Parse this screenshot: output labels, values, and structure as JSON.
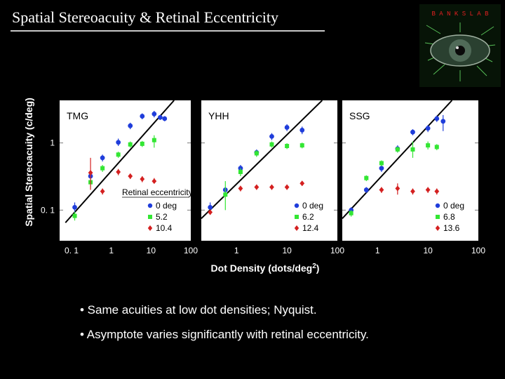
{
  "slide": {
    "title": "Spatial Stereoacuity & Retinal Eccentricity",
    "logo_text": "B A N K S  L A B",
    "bullets": [
      "• Same acuities at low dot densities; Nyquist.",
      "• Asymptote varies significantly with retinal eccentricity."
    ]
  },
  "chart_data": {
    "type": "scatter",
    "xlabel": "Dot Density (dots/deg",
    "xlabel_sup": "2",
    "xlabel_tail": ")",
    "ylabel": "Spatial Stereoacuity (c/deg)",
    "y_log": true,
    "x_log": true,
    "ylim": [
      0.035,
      4.3
    ],
    "y_ticks": [
      {
        "v": 1,
        "label": "1"
      },
      {
        "v": 0.1,
        "label": "0. 1"
      }
    ],
    "legend_title": "Retinal eccentricity",
    "colors": {
      "blue": "#1f3ddb",
      "green": "#33e633",
      "red": "#d42020",
      "line": "#000000"
    },
    "panels": [
      {
        "name": "TMG",
        "xlim": [
          0.05,
          100
        ],
        "x_ticks": [
          {
            "v": 0.1,
            "label": "0. 1"
          },
          {
            "v": 1,
            "label": "1"
          },
          {
            "v": 10,
            "label": "10"
          },
          {
            "v": 100,
            "label": "100"
          }
        ],
        "line": [
          [
            0.07,
            0.065
          ],
          [
            38,
            4.3
          ]
        ],
        "series": [
          {
            "name": "0 deg",
            "color": "blue",
            "marker": "circle",
            "points": [
              {
                "x": 0.12,
                "y": 0.11,
                "lo": 0.09,
                "hi": 0.13
              },
              {
                "x": 0.3,
                "y": 0.32,
                "lo": 0.28,
                "hi": 0.36
              },
              {
                "x": 0.6,
                "y": 0.6,
                "lo": 0.53,
                "hi": 0.67
              },
              {
                "x": 1.5,
                "y": 1.02,
                "lo": 0.9,
                "hi": 1.16
              },
              {
                "x": 3.0,
                "y": 1.8,
                "lo": 1.6,
                "hi": 2.0
              },
              {
                "x": 6.0,
                "y": 2.5,
                "lo": 2.25,
                "hi": 2.75
              },
              {
                "x": 12,
                "y": 2.7,
                "lo": 2.4,
                "hi": 3.0
              },
              {
                "x": 17,
                "y": 2.4,
                "lo": 2.2,
                "hi": 2.6
              },
              {
                "x": 22,
                "y": 2.3,
                "lo": 2.1,
                "hi": 2.5
              }
            ]
          },
          {
            "name": "5.2",
            "color": "green",
            "marker": "square",
            "points": [
              {
                "x": 0.12,
                "y": 0.082,
                "lo": 0.07,
                "hi": 0.095
              },
              {
                "x": 0.3,
                "y": 0.26,
                "lo": 0.22,
                "hi": 0.3
              },
              {
                "x": 0.6,
                "y": 0.42,
                "lo": 0.37,
                "hi": 0.47
              },
              {
                "x": 1.5,
                "y": 0.67,
                "lo": 0.6,
                "hi": 0.74
              },
              {
                "x": 3.0,
                "y": 0.95,
                "lo": 0.85,
                "hi": 1.05
              },
              {
                "x": 6.0,
                "y": 0.97,
                "lo": 0.87,
                "hi": 1.07
              },
              {
                "x": 12,
                "y": 1.1,
                "lo": 0.85,
                "hi": 1.3
              }
            ]
          },
          {
            "name": "10.4",
            "color": "red",
            "marker": "diamond",
            "points": [
              {
                "x": 0.3,
                "y": 0.36,
                "lo": 0.2,
                "hi": 0.6
              },
              {
                "x": 0.6,
                "y": 0.19,
                "lo": 0.17,
                "hi": 0.21
              },
              {
                "x": 1.5,
                "y": 0.37,
                "lo": 0.33,
                "hi": 0.41
              },
              {
                "x": 3.0,
                "y": 0.32,
                "lo": 0.29,
                "hi": 0.35
              },
              {
                "x": 6.0,
                "y": 0.29,
                "lo": 0.26,
                "hi": 0.32
              },
              {
                "x": 12,
                "y": 0.27,
                "lo": 0.25,
                "hi": 0.3
              }
            ]
          }
        ]
      },
      {
        "name": "YHH",
        "xlim": [
          0.2,
          100
        ],
        "x_ticks": [
          {
            "v": 1,
            "label": "1"
          },
          {
            "v": 10,
            "label": "10"
          },
          {
            "v": 100,
            "label": "100"
          }
        ],
        "line": [
          [
            0.2,
            0.075
          ],
          [
            50,
            4.3
          ]
        ],
        "series": [
          {
            "name": "0 deg",
            "color": "blue",
            "marker": "circle",
            "points": [
              {
                "x": 0.3,
                "y": 0.11,
                "lo": 0.09,
                "hi": 0.13
              },
              {
                "x": 0.6,
                "y": 0.2,
                "lo": 0.18,
                "hi": 0.22
              },
              {
                "x": 1.2,
                "y": 0.42,
                "lo": 0.37,
                "hi": 0.47
              },
              {
                "x": 2.5,
                "y": 0.72,
                "lo": 0.64,
                "hi": 0.8
              },
              {
                "x": 5,
                "y": 1.25,
                "lo": 1.1,
                "hi": 1.4
              },
              {
                "x": 10,
                "y": 1.7,
                "lo": 1.5,
                "hi": 1.9
              },
              {
                "x": 20,
                "y": 1.55,
                "lo": 1.35,
                "hi": 1.75
              }
            ]
          },
          {
            "name": "6.2",
            "color": "green",
            "marker": "square",
            "points": [
              {
                "x": 0.6,
                "y": 0.17,
                "lo": 0.1,
                "hi": 0.27
              },
              {
                "x": 1.2,
                "y": 0.37,
                "lo": 0.32,
                "hi": 0.42
              },
              {
                "x": 2.5,
                "y": 0.7,
                "lo": 0.62,
                "hi": 0.78
              },
              {
                "x": 5,
                "y": 0.95,
                "lo": 0.85,
                "hi": 1.05
              },
              {
                "x": 10,
                "y": 0.9,
                "lo": 0.81,
                "hi": 0.99
              },
              {
                "x": 20,
                "y": 0.92,
                "lo": 0.83,
                "hi": 1.01
              }
            ]
          },
          {
            "name": "12.4",
            "color": "red",
            "marker": "diamond",
            "points": [
              {
                "x": 0.3,
                "y": 0.093,
                "lo": 0.085,
                "hi": 0.1
              },
              {
                "x": 1.2,
                "y": 0.21,
                "lo": 0.19,
                "hi": 0.23
              },
              {
                "x": 2.5,
                "y": 0.22,
                "lo": 0.2,
                "hi": 0.24
              },
              {
                "x": 5,
                "y": 0.22,
                "lo": 0.2,
                "hi": 0.24
              },
              {
                "x": 10,
                "y": 0.22,
                "lo": 0.2,
                "hi": 0.24
              },
              {
                "x": 20,
                "y": 0.25,
                "lo": 0.23,
                "hi": 0.27
              }
            ]
          }
        ]
      },
      {
        "name": "SSG",
        "xlim": [
          0.2,
          100
        ],
        "x_ticks": [
          {
            "v": 1,
            "label": "1"
          },
          {
            "v": 10,
            "label": "10"
          },
          {
            "v": 100,
            "label": "100"
          }
        ],
        "line": [
          [
            0.2,
            0.075
          ],
          [
            30,
            4.3
          ]
        ],
        "series": [
          {
            "name": "0 deg",
            "color": "blue",
            "marker": "circle",
            "points": [
              {
                "x": 0.3,
                "y": 0.1,
                "lo": 0.09,
                "hi": 0.11
              },
              {
                "x": 0.6,
                "y": 0.2,
                "lo": 0.18,
                "hi": 0.22
              },
              {
                "x": 1.2,
                "y": 0.42,
                "lo": 0.37,
                "hi": 0.47
              },
              {
                "x": 2.5,
                "y": 0.82,
                "lo": 0.72,
                "hi": 0.92
              },
              {
                "x": 5,
                "y": 1.45,
                "lo": 1.3,
                "hi": 1.6
              },
              {
                "x": 10,
                "y": 1.65,
                "lo": 1.45,
                "hi": 1.85
              },
              {
                "x": 15,
                "y": 2.3,
                "lo": 2.05,
                "hi": 2.55
              },
              {
                "x": 20,
                "y": 2.1,
                "lo": 1.5,
                "hi": 2.6
              }
            ]
          },
          {
            "name": "6.8",
            "color": "green",
            "marker": "square",
            "points": [
              {
                "x": 0.3,
                "y": 0.09,
                "lo": 0.08,
                "hi": 0.1
              },
              {
                "x": 0.6,
                "y": 0.3,
                "lo": 0.27,
                "hi": 0.33
              },
              {
                "x": 1.2,
                "y": 0.5,
                "lo": 0.45,
                "hi": 0.55
              },
              {
                "x": 2.5,
                "y": 0.8,
                "lo": 0.72,
                "hi": 0.88
              },
              {
                "x": 5,
                "y": 0.8,
                "lo": 0.6,
                "hi": 1.05
              },
              {
                "x": 10,
                "y": 0.92,
                "lo": 0.8,
                "hi": 1.05
              },
              {
                "x": 15,
                "y": 0.87,
                "lo": 0.78,
                "hi": 0.96
              }
            ]
          },
          {
            "name": "13.6",
            "color": "red",
            "marker": "diamond",
            "points": [
              {
                "x": 1.2,
                "y": 0.2,
                "lo": 0.18,
                "hi": 0.22
              },
              {
                "x": 2.5,
                "y": 0.21,
                "lo": 0.17,
                "hi": 0.25
              },
              {
                "x": 5,
                "y": 0.19,
                "lo": 0.17,
                "hi": 0.21
              },
              {
                "x": 10,
                "y": 0.2,
                "lo": 0.18,
                "hi": 0.22
              },
              {
                "x": 15,
                "y": 0.19,
                "lo": 0.17,
                "hi": 0.21
              }
            ]
          }
        ]
      }
    ]
  }
}
